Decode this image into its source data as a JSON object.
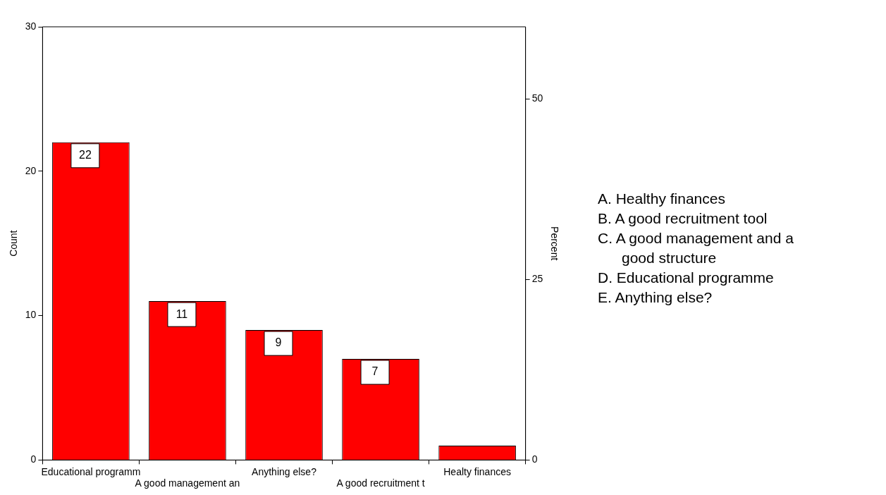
{
  "chart_data": {
    "type": "bar",
    "categories": [
      "Educational programm",
      "A good management an",
      "Anything else?",
      "A good recruitment t",
      "Healty finances"
    ],
    "values": [
      22,
      11,
      9,
      7,
      1
    ],
    "color": "#ff0000",
    "value_labels": [
      "22",
      "11",
      "9",
      "7",
      null
    ],
    "ylabel": "Count",
    "y2label": "Percent",
    "ylim": [
      0,
      30
    ],
    "yticks": [
      0,
      10,
      20,
      30
    ],
    "y2lim": [
      0,
      60
    ],
    "y2ticks": [
      0,
      25,
      50
    ],
    "grid": false,
    "legend": false,
    "annotations": [
      "A.  Healthy finances",
      "B.  A good recruitment tool",
      "C.  A good management and a good structure",
      "D.  Educational programme",
      "E.  Anything else?"
    ]
  }
}
